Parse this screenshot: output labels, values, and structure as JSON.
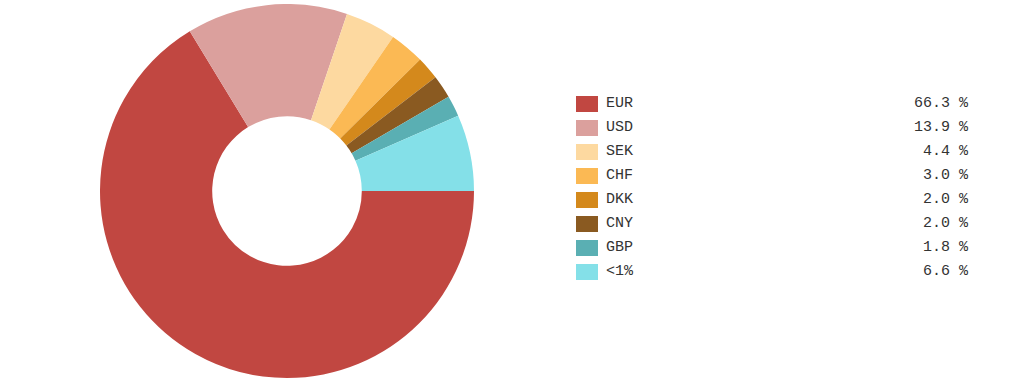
{
  "chart_data": {
    "type": "doughnut",
    "categories": [
      "EUR",
      "USD",
      "SEK",
      "CHF",
      "DKK",
      "CNY",
      "GBP",
      "<1%"
    ],
    "values": [
      66.3,
      13.9,
      4.4,
      3.0,
      2.0,
      2.0,
      1.8,
      6.6
    ],
    "value_labels": [
      "66.3 %",
      "13.9 %",
      "4.4 %",
      "3.0 %",
      "2.0 %",
      "2.0 %",
      "1.8 %",
      "6.6 %"
    ],
    "colors": [
      "#c14741",
      "#dba09d",
      "#fdd9a0",
      "#fbb954",
      "#d4891c",
      "#8a5a21",
      "#5aafb3",
      "#84e0e8"
    ],
    "legend": "right"
  }
}
